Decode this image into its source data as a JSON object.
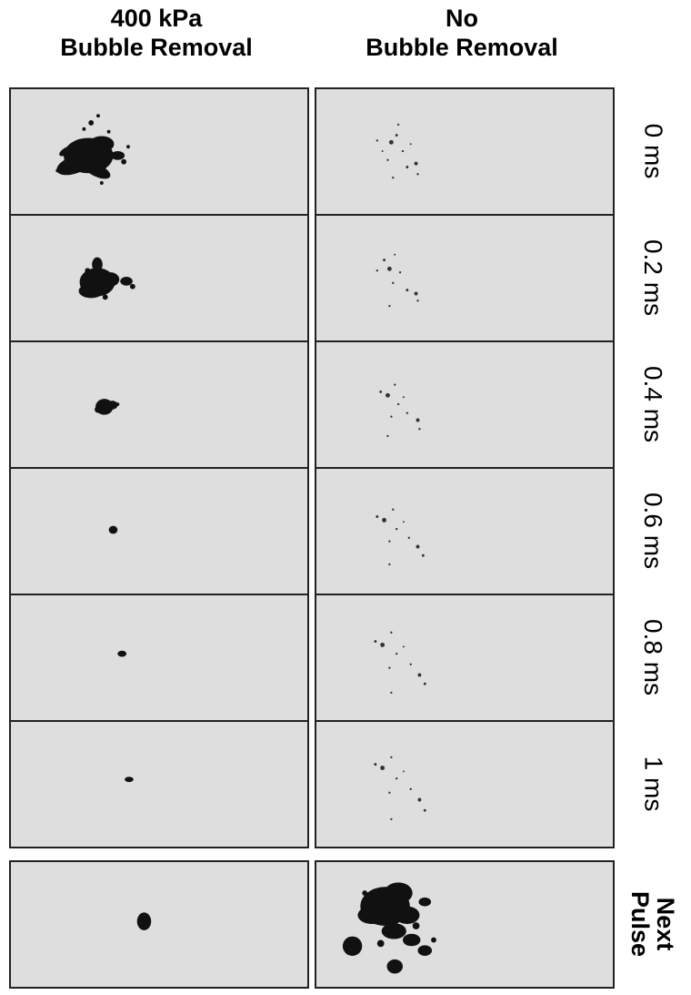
{
  "columns": [
    {
      "line1": "400 kPa",
      "line2": "Bubble Removal"
    },
    {
      "line1": "No",
      "line2": "Bubble Removal"
    }
  ],
  "rows": [
    {
      "label": "0 ms"
    },
    {
      "label": "0.2 ms"
    },
    {
      "label": "0.4 ms"
    },
    {
      "label": "0.6 ms"
    },
    {
      "label": "0.8 ms"
    },
    {
      "label": "1 ms"
    }
  ],
  "next_pulse": {
    "line1": "Next",
    "line2": "Pulse"
  }
}
